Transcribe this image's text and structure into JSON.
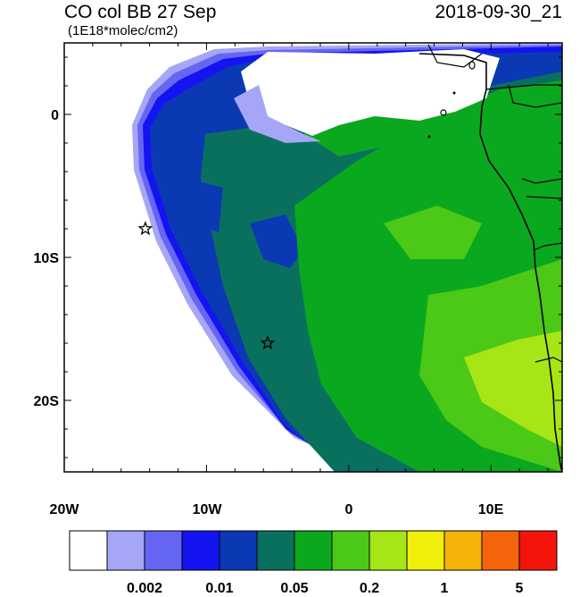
{
  "header": {
    "title": "CO col BB 27 Sep",
    "datetime": "2018-09-30_21",
    "units": "(1E18*molec/cm2)"
  },
  "axes": {
    "lon_labels": [
      "20W",
      "10W",
      "0",
      "10E"
    ],
    "lat_labels": [
      "0",
      "10S",
      "20S"
    ]
  },
  "markers": [
    {
      "name": "star",
      "lon": -14.3,
      "lat": -8.0
    },
    {
      "name": "star",
      "lon": -5.7,
      "lat": -16.0
    }
  ],
  "colorbar": {
    "colors": [
      "#ffffff",
      "#a6a6f6",
      "#6666f4",
      "#1414f0",
      "#0b39b4",
      "#0a705e",
      "#0aa81e",
      "#4cc817",
      "#a6e616",
      "#f0f00a",
      "#f4b40a",
      "#f4640a",
      "#f4140a"
    ],
    "labels": [
      "0.002",
      "0.01",
      "0.05",
      "0.2",
      "1",
      "5"
    ]
  },
  "map_colors": {
    "ocean_white": "#ffffff",
    "light_blue": "#a6a6f6",
    "mid_blue": "#6666f4",
    "blue": "#1414f0",
    "dark_blue": "#0b39b4",
    "teal": "#0a705e",
    "green": "#0aa81e",
    "light_green": "#4cc817",
    "yellow_green": "#a6e616"
  }
}
